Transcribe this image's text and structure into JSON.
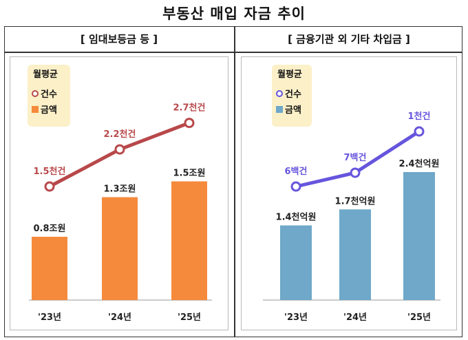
{
  "title": "부동산 매입 자금 추이",
  "colors": {
    "left_line": "#b8484a",
    "left_bar": "#f58a3c",
    "right_line": "#6655dd",
    "right_bar": "#6fa8c8",
    "legend_bg": "#fbf0c8"
  },
  "chart_data": [
    {
      "type": "bar+line",
      "title": "[ 임대보등금 등 ]",
      "legend": {
        "title": "월평균",
        "line_label": "건수",
        "bar_label": "금액"
      },
      "categories": [
        "'23년",
        "'24년",
        "'25년"
      ],
      "series": [
        {
          "name": "건수",
          "kind": "line",
          "values": [
            1.5,
            2.2,
            2.7
          ],
          "unit": "천건",
          "labels": [
            "1.5천건",
            "2.2천건",
            "2.7천건"
          ]
        },
        {
          "name": "금액",
          "kind": "bar",
          "values": [
            0.8,
            1.3,
            1.5
          ],
          "unit": "조원",
          "labels": [
            "0.8조원",
            "1.3조원",
            "1.5조원"
          ]
        }
      ]
    },
    {
      "type": "bar+line",
      "title": "[ 금융기관 외 기타 차입금 ]",
      "legend": {
        "title": "월평균",
        "line_label": "건수",
        "bar_label": "금액"
      },
      "categories": [
        "'23년",
        "'24년",
        "'25년"
      ],
      "series": [
        {
          "name": "건수",
          "kind": "line",
          "values": [
            600,
            700,
            1000
          ],
          "unit": "건",
          "labels": [
            "6백건",
            "7백건",
            "1천건"
          ]
        },
        {
          "name": "금액",
          "kind": "bar",
          "values": [
            1.4,
            1.7,
            2.4
          ],
          "unit": "천억원",
          "labels": [
            "1.4천억원",
            "1.7천억원",
            "2.4천억원"
          ]
        }
      ]
    }
  ]
}
